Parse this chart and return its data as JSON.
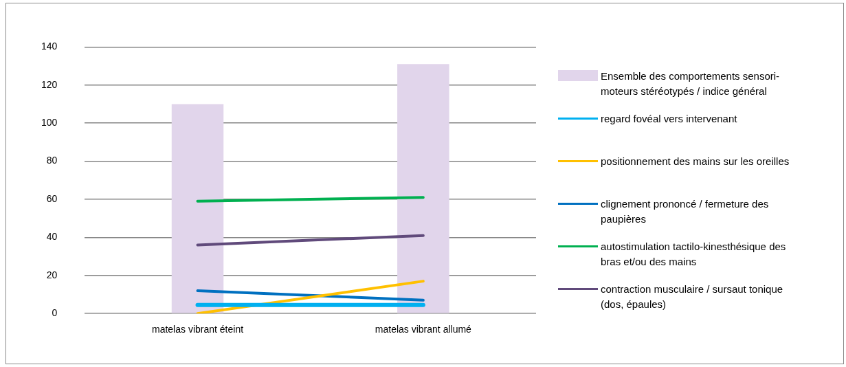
{
  "chart_data": {
    "type": "line",
    "categories": [
      "matelas vibrant éteint",
      "matelas vibrant allumé"
    ],
    "series": [
      {
        "name": "Ensemble des comportements sensori-moteurs stéréotypés / indice général",
        "type": "bar",
        "color": "#e1d5eb",
        "values": [
          110,
          131
        ]
      },
      {
        "name": "regard fovéal vers intervenant",
        "color": "#00b0f0",
        "values": [
          4.5,
          4.5
        ]
      },
      {
        "name": "positionnement des mains sur les oreilles",
        "color": "#ffc000",
        "values": [
          0,
          17
        ]
      },
      {
        "name": "clignement prononcé / fermeture des paupières",
        "color": "#0070c0",
        "values": [
          12,
          7
        ]
      },
      {
        "name": "autostimulation tactilo-kinesthésique des bras et/ou des mains",
        "color": "#00b050",
        "values": [
          59,
          61
        ]
      },
      {
        "name": "contraction musculaire / sursaut tonique (dos, épaules)",
        "color": "#604a7b",
        "values": [
          36,
          41
        ]
      }
    ],
    "ylim": [
      0,
      140
    ],
    "yticks": [
      0,
      20,
      40,
      60,
      80,
      100,
      120,
      140
    ],
    "grid": "y",
    "legend": "right",
    "marker": "none"
  }
}
